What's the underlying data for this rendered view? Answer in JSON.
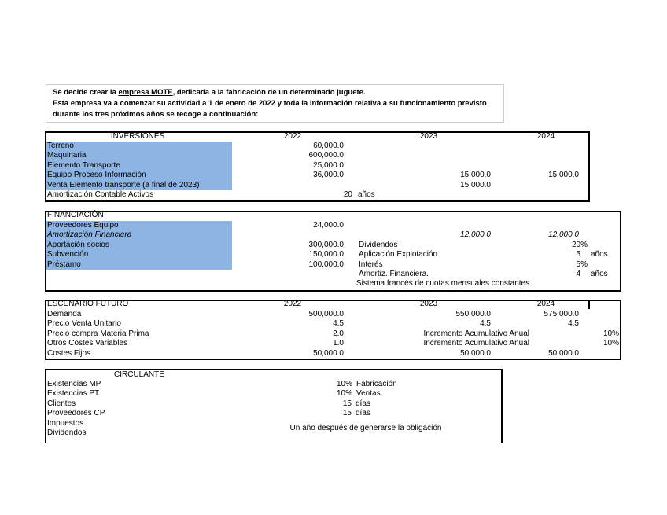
{
  "intro": {
    "line1_pre": "Se decide crear la ",
    "line1_company": "empresa MOTE",
    "line1_post": ", dedicada a la fabricación de un determinado juguete.",
    "line2": "Esta empresa va a comenzar su actividad a 1 de enero de 2022 y toda la información relativa a su funcionamiento previsto",
    "line3": "durante los tres próximos años se recoge a continuación:"
  },
  "inversiones": {
    "title": "INVERSIONES",
    "years": [
      "2022",
      "2023",
      "2024"
    ],
    "rows": [
      {
        "label": "Terreno",
        "v2022": "60,000.0",
        "v2023": "",
        "v2024": ""
      },
      {
        "label": "Maquinaria",
        "v2022": "600,000.0",
        "v2023": "",
        "v2024": ""
      },
      {
        "label": "Elemento Transporte",
        "v2022": "25,000.0",
        "v2023": "",
        "v2024": ""
      },
      {
        "label": "Equipo Proceso Información",
        "v2022": "36,000.0",
        "v2023": "15,000.0",
        "v2024": "15,000.0"
      },
      {
        "label": "Venta Elemento transporte (a final de 2023)",
        "v2022": "",
        "v2023": "15,000.0",
        "v2024": ""
      }
    ],
    "amort_label": "Amortización Contable Activos",
    "amort_value": "20",
    "amort_unit": "años"
  },
  "financiacion": {
    "title": "FINANCIACIÓN",
    "rows": [
      {
        "label": "Proveedores Equipo",
        "v2022": "24,000.0"
      },
      {
        "label": "Amortización Financiera",
        "v2023": "12,000.0",
        "v2024": "12,000.0"
      },
      {
        "label": "Aportación socios",
        "v2022": "300,000.0"
      },
      {
        "label": "Subvención",
        "v2022": "150,000.0"
      },
      {
        "label": "Préstamo",
        "v2022": "100,000.0"
      }
    ],
    "params": [
      {
        "label": "Dividendos",
        "value": "20%",
        "unit": ""
      },
      {
        "label": "Aplicación Explotación",
        "value": "5",
        "unit": "años"
      },
      {
        "label": "Interés",
        "value": "5%",
        "unit": ""
      },
      {
        "label": "Amortiz. Financiera.",
        "value": "4",
        "unit": "años"
      }
    ],
    "note": "Sistema francés de cuotas mensuales constantes"
  },
  "escenario": {
    "title": "ESCENARIO FUTURO",
    "years": [
      "2022",
      "2023",
      "2024"
    ],
    "rows": [
      {
        "label": "Demanda",
        "v2022": "500,000.0",
        "v2023": "550,000.0",
        "v2024": "575,000.0"
      },
      {
        "label": "Precio Venta Unitario",
        "v2022": "4.5",
        "v2023": "4.5",
        "v2024": "4.5"
      },
      {
        "label": "Precio compra Materia Prima",
        "v2022": "2.0",
        "inc": "Incremento Acumulativo Anual",
        "pct": "10%"
      },
      {
        "label": "Otros Costes Variables",
        "v2022": "1.0",
        "inc": "Incremento Acumulativo Anual",
        "pct": "10%"
      },
      {
        "label": "Costes Fijos",
        "v2022": "50,000.0",
        "v2023": "50,000.0",
        "v2024": "50,000.0"
      }
    ]
  },
  "circulante": {
    "title": "CIRCULANTE",
    "rows": [
      {
        "label": "Existencias MP",
        "value": "10%",
        "unit": "Fabricación"
      },
      {
        "label": "Existencias PT",
        "value": "10%",
        "unit": "Ventas"
      },
      {
        "label": "Clientes",
        "value": "15",
        "unit": "días"
      },
      {
        "label": "Proveedores CP",
        "value": "15",
        "unit": "días"
      },
      {
        "label": "Impuestos"
      },
      {
        "label": "Dividendos"
      }
    ],
    "note": "Un año después de generarse la obligación"
  }
}
